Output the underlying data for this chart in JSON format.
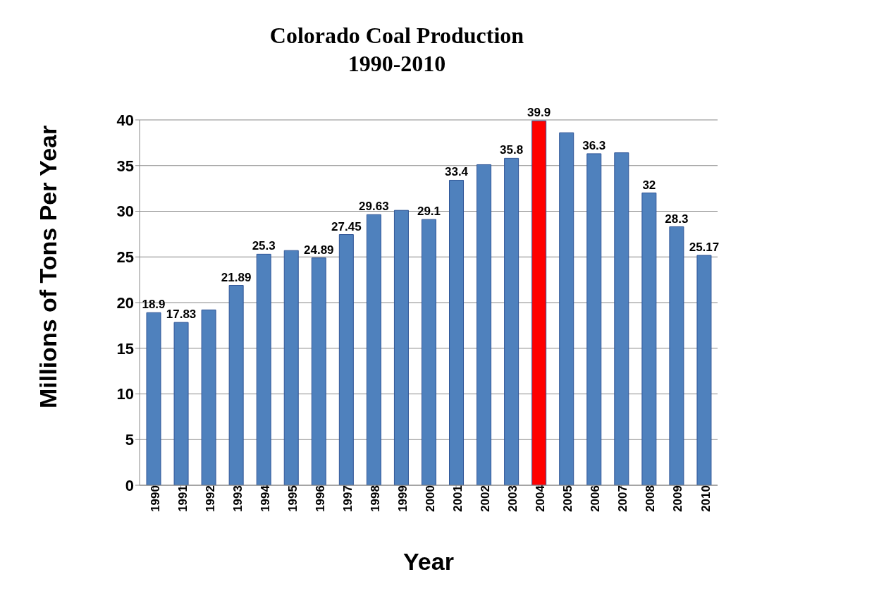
{
  "chart_data": {
    "type": "bar",
    "title": "Colorado Coal Production",
    "subtitle": "1990-2010",
    "xlabel": "Year",
    "ylabel": "Millions of Tons Per Year",
    "categories": [
      "1990",
      "1991",
      "1992",
      "1993",
      "1994",
      "1995",
      "1996",
      "1997",
      "1998",
      "1999",
      "2000",
      "2001",
      "2002",
      "2003",
      "2004",
      "2005",
      "2006",
      "2007",
      "2008",
      "2009",
      "2010"
    ],
    "values": [
      18.9,
      17.83,
      19.2,
      21.89,
      25.3,
      25.7,
      24.89,
      27.45,
      29.63,
      30.1,
      29.1,
      33.4,
      35.1,
      35.8,
      39.9,
      38.6,
      36.3,
      36.4,
      32,
      28.3,
      25.17
    ],
    "value_labels": [
      "18.9",
      "17.83",
      null,
      "21.89",
      "25.3",
      null,
      "24.89",
      "27.45",
      "29.63",
      null,
      "29.1",
      "33.4",
      null,
      "35.8",
      "39.9",
      null,
      "36.3",
      null,
      "32",
      "28.3",
      "25.17"
    ],
    "colors": [
      "#4f81bd",
      "#4f81bd",
      "#4f81bd",
      "#4f81bd",
      "#4f81bd",
      "#4f81bd",
      "#4f81bd",
      "#4f81bd",
      "#4f81bd",
      "#4f81bd",
      "#4f81bd",
      "#4f81bd",
      "#4f81bd",
      "#4f81bd",
      "#ff0000",
      "#4f81bd",
      "#4f81bd",
      "#4f81bd",
      "#4f81bd",
      "#4f81bd",
      "#4f81bd"
    ],
    "ylim": [
      0,
      40
    ],
    "yticks": [
      0,
      5,
      10,
      15,
      20,
      25,
      30,
      35,
      40
    ],
    "grid": "y"
  }
}
